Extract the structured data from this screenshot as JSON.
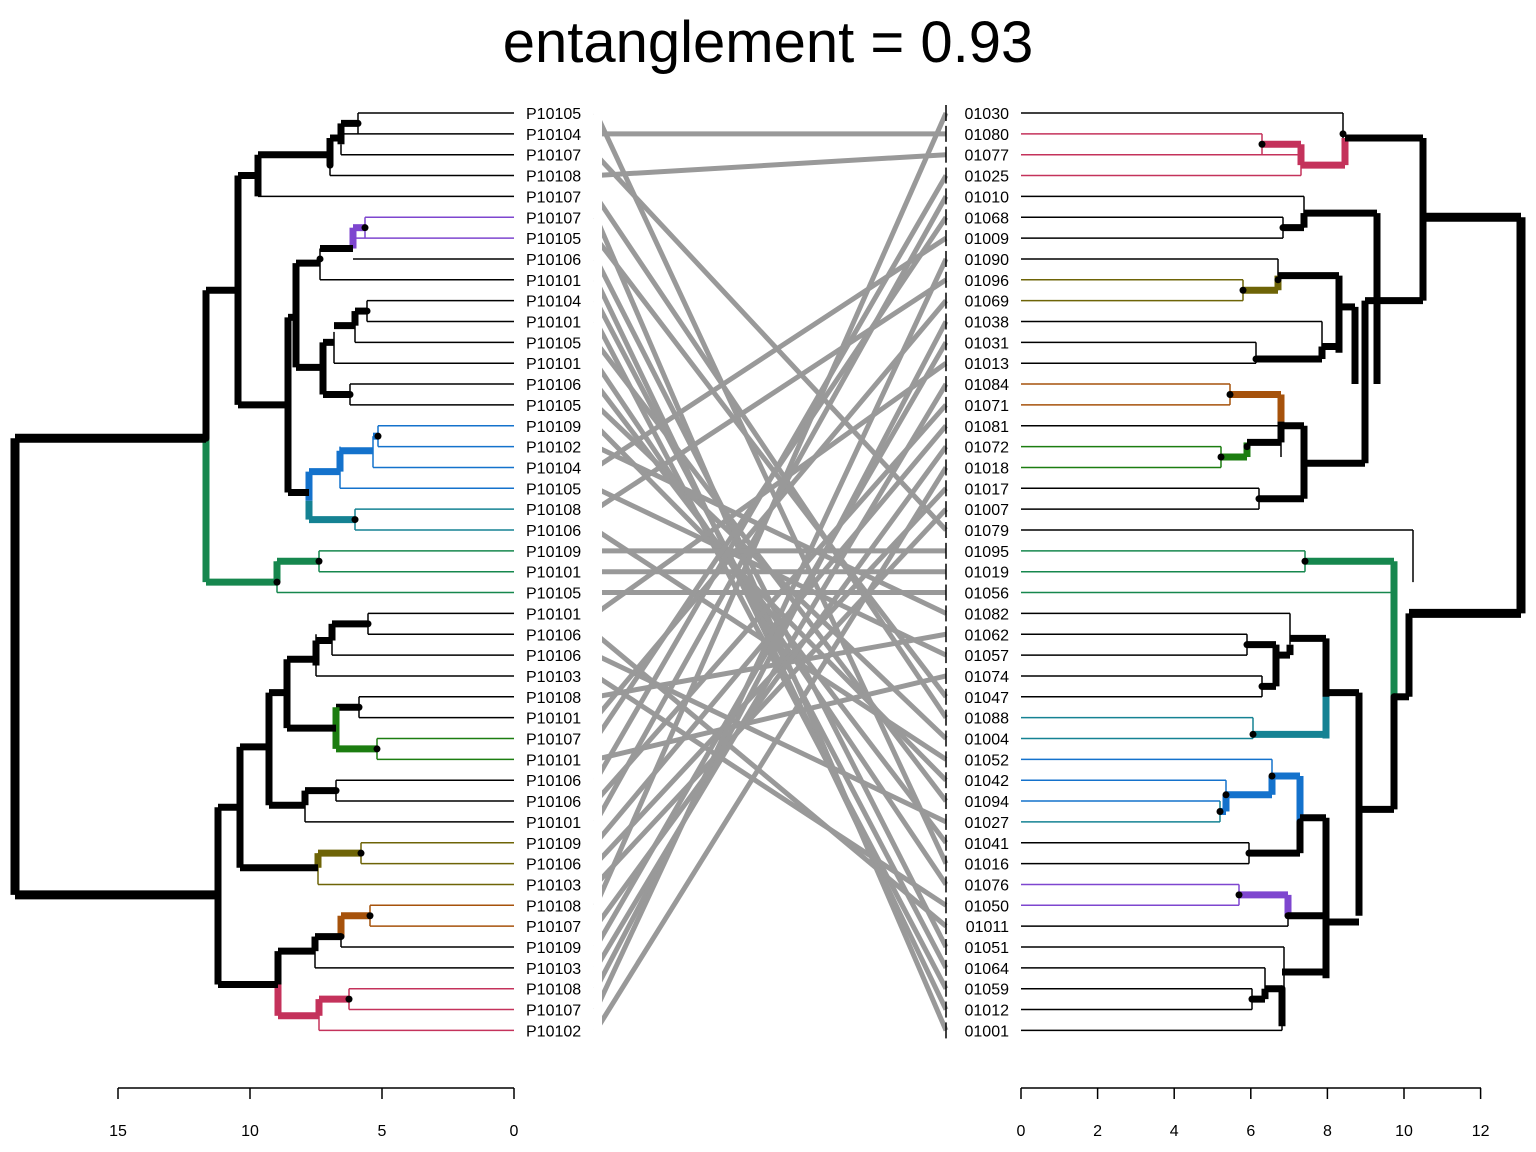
{
  "title": "entanglement = 0.93",
  "left_axis": {
    "ticks": [
      "15",
      "10",
      "5",
      "0"
    ]
  },
  "right_axis": {
    "ticks": [
      "0",
      "2",
      "4",
      "6",
      "8",
      "10",
      "12"
    ]
  },
  "left_labels": [
    "P10105",
    "P10104",
    "P10107",
    "P10108",
    "P10107",
    "P10107",
    "P10105",
    "P10106",
    "P10101",
    "P10104",
    "P10101",
    "P10105",
    "P10101",
    "P10106",
    "P10105",
    "P10109",
    "P10102",
    "P10104",
    "P10105",
    "P10108",
    "P10106",
    "P10109",
    "P10101",
    "P10105",
    "P10101",
    "P10106",
    "P10106",
    "P10103",
    "P10108",
    "P10101",
    "P10107",
    "P10101",
    "P10106",
    "P10106",
    "P10101",
    "P10109",
    "P10106",
    "P10103",
    "P10108",
    "P10107",
    "P10109",
    "P10103",
    "P10108",
    "P10107",
    "P10102"
  ],
  "right_labels": [
    "01030",
    "01080",
    "01077",
    "01025",
    "01010",
    "01068",
    "01009",
    "01090",
    "01096",
    "01069",
    "01038",
    "01031",
    "01013",
    "01084",
    "01071",
    "01081",
    "01072",
    "01018",
    "01017",
    "01007",
    "01079",
    "01095",
    "01019",
    "01056",
    "01082",
    "01062",
    "01057",
    "01074",
    "01047",
    "01088",
    "01004",
    "01052",
    "01042",
    "01094",
    "01027",
    "01041",
    "01016",
    "01076",
    "01050",
    "01011",
    "01051",
    "01064",
    "01059",
    "01012",
    "01001"
  ],
  "colors": {
    "connector": "#999999",
    "tree": "#000000",
    "green_cluster": "#16874e",
    "purple_cluster": "#7e46cf",
    "blue_cluster": "#1472cc",
    "teal_cluster": "#158293",
    "olive_cluster": "#6e6407",
    "orange_cluster": "#a6520b",
    "pink_cluster": "#c4325b",
    "dark_green_cluster": "#1c7d10"
  }
}
